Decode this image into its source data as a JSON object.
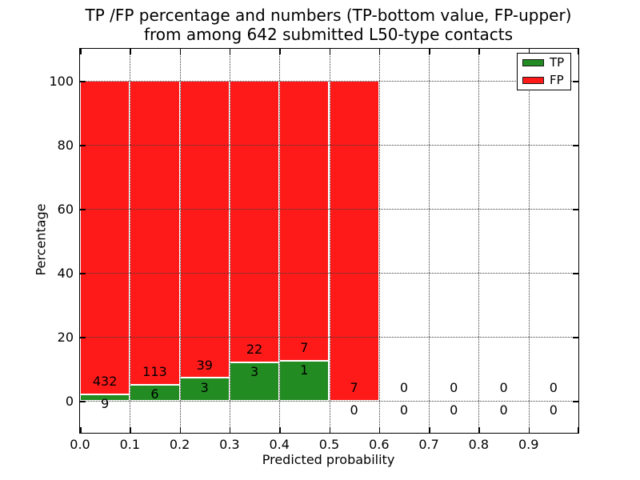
{
  "chart_data": {
    "type": "bar",
    "subtype": "stacked-percentage-histogram",
    "title_line1": "TP /FP percentage and numbers (TP-bottom value, FP-upper)",
    "title_line2": "from among 642 submitted L50-type contacts",
    "xlabel": "Predicted probability",
    "ylabel": "Percentage",
    "xlim": [
      0.0,
      1.0
    ],
    "ylim": [
      -10,
      110
    ],
    "xtick_labels": [
      "0.0",
      "0.1",
      "0.2",
      "0.3",
      "0.4",
      "0.5",
      "0.6",
      "0.7",
      "0.8",
      "0.9"
    ],
    "ytick_values": [
      0,
      20,
      40,
      60,
      80,
      100
    ],
    "grid": "dotted, both axes",
    "legend_position": "upper right",
    "legend": [
      {
        "label": "TP",
        "color": "#228b22"
      },
      {
        "label": "FP",
        "color": "#ff1a1a"
      }
    ],
    "total_contacts": 642,
    "bins": [
      {
        "range": [
          0.0,
          0.1
        ],
        "tp": 9,
        "fp": 432
      },
      {
        "range": [
          0.1,
          0.2
        ],
        "tp": 6,
        "fp": 113
      },
      {
        "range": [
          0.2,
          0.3
        ],
        "tp": 3,
        "fp": 39
      },
      {
        "range": [
          0.3,
          0.4
        ],
        "tp": 3,
        "fp": 22
      },
      {
        "range": [
          0.4,
          0.5
        ],
        "tp": 1,
        "fp": 7
      },
      {
        "range": [
          0.5,
          0.6
        ],
        "tp": 0,
        "fp": 7
      },
      {
        "range": [
          0.6,
          0.7
        ],
        "tp": 0,
        "fp": 0
      },
      {
        "range": [
          0.7,
          0.8
        ],
        "tp": 0,
        "fp": 0
      },
      {
        "range": [
          0.8,
          0.9
        ],
        "tp": 0,
        "fp": 0
      },
      {
        "range": [
          0.9,
          1.0
        ],
        "tp": 0,
        "fp": 0
      }
    ],
    "colors": {
      "tp_bar": "#228b22",
      "fp_bar": "#ff1a1a",
      "bar_edge": "#ffffff",
      "grid": "#3a3a3a",
      "text": "#000000",
      "background": "#ffffff"
    }
  }
}
